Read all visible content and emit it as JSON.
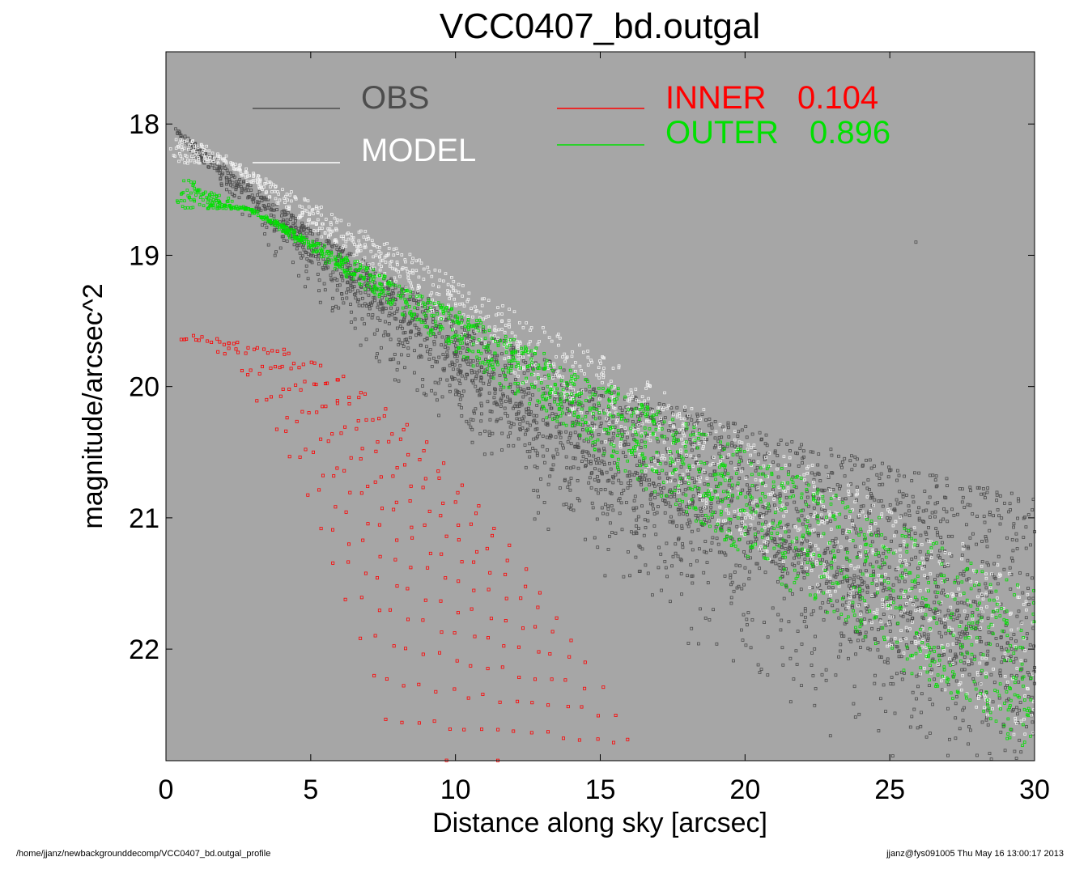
{
  "chart_data": {
    "type": "scatter",
    "title": "VCC0407_bd.outgal",
    "xlabel": "Distance along sky [arcsec]",
    "ylabel": "magnitude/arcsec^2",
    "xlim": [
      0,
      30
    ],
    "ylim": [
      22.85,
      17.45
    ],
    "y_inverted": true,
    "x_ticks": [
      "0",
      "5",
      "10",
      "15",
      "20",
      "25",
      "30"
    ],
    "y_ticks": [
      "18",
      "19",
      "20",
      "21",
      "22"
    ],
    "background_color": "#a6a6a6",
    "grid": false,
    "legend_placement": "top",
    "series": [
      {
        "name": "OBS",
        "color": "#4d4d4d",
        "profile": {
          "x": [
            0.3,
            5,
            10,
            15,
            20,
            25,
            30
          ],
          "y_center": [
            18.05,
            18.95,
            19.8,
            20.55,
            21.05,
            21.55,
            21.95
          ]
        },
        "spread_min": [
          0.02,
          0.15,
          0.35,
          0.55,
          0.75,
          0.95,
          1.1
        ],
        "spread_max": [
          0.05,
          0.35,
          0.6,
          0.85,
          1.05,
          1.25,
          1.45
        ],
        "x_range": [
          0.3,
          30
        ]
      },
      {
        "name": "MODEL",
        "color": "#f2f2f2",
        "lines": [
          {
            "x": [
              0.3,
              30
            ],
            "y": [
              18.05,
              21.5
            ]
          },
          {
            "x": [
              2.0,
              30
            ],
            "y": [
              18.3,
              22.8
            ]
          }
        ]
      },
      {
        "name": "INNER",
        "value": "0.104",
        "color": "#ff0000",
        "x_range": [
          0.5,
          16.5
        ],
        "y_start": 19.62,
        "x_end_at_bottom": [
          8.0,
          16.5
        ]
      },
      {
        "name": "OUTER",
        "value": "0.896",
        "color": "#00e000",
        "lines": [
          {
            "x": [
              0.5,
              30
            ],
            "y": [
              18.4,
              21.55
            ]
          },
          {
            "x": [
              3.0,
              30
            ],
            "y": [
              18.65,
              22.85
            ]
          }
        ]
      }
    ],
    "legend": [
      {
        "label": "OBS",
        "color": "#4d4d4d"
      },
      {
        "label": "MODEL",
        "color": "#ffffff"
      },
      {
        "label": "INNER",
        "value": "0.104",
        "color": "#ff0000"
      },
      {
        "label": "OUTER",
        "value": "0.896",
        "color": "#00e000"
      }
    ],
    "outliers": [
      {
        "x": 25.9,
        "y": 18.9
      }
    ]
  },
  "footer": {
    "path": "/home/jjanz/newbackgrounddecomp/VCC0407_bd.outgal_profile",
    "stamp": "jjanz@fys091005  Thu May 16 13:00:17 2013"
  }
}
